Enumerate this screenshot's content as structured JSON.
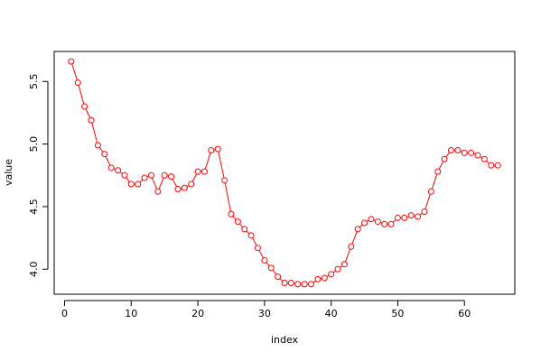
{
  "chart_data": {
    "type": "line",
    "marker": "open-circle",
    "color": "#ff0000",
    "xlabel": "index",
    "ylabel": "value",
    "x": [
      1,
      2,
      3,
      4,
      5,
      6,
      7,
      8,
      9,
      10,
      11,
      12,
      13,
      14,
      15,
      16,
      17,
      18,
      19,
      20,
      21,
      22,
      23,
      24,
      25,
      26,
      27,
      28,
      29,
      30,
      31,
      32,
      33,
      34,
      35,
      36,
      37,
      38,
      39,
      40,
      41,
      42,
      43,
      44,
      45,
      46,
      47,
      48,
      49,
      50,
      51,
      52,
      53,
      54,
      55,
      56,
      57,
      58,
      59,
      60,
      61,
      62,
      63,
      64,
      65
    ],
    "values": [
      5.66,
      5.49,
      5.3,
      5.19,
      4.99,
      4.92,
      4.81,
      4.79,
      4.75,
      4.68,
      4.68,
      4.73,
      4.75,
      4.62,
      4.75,
      4.74,
      4.64,
      4.65,
      4.68,
      4.78,
      4.78,
      4.95,
      4.96,
      4.71,
      4.44,
      4.38,
      4.32,
      4.27,
      4.17,
      4.07,
      4.01,
      3.94,
      3.89,
      3.89,
      3.88,
      3.88,
      3.88,
      3.92,
      3.93,
      3.96,
      4.0,
      4.04,
      4.18,
      4.32,
      4.37,
      4.4,
      4.38,
      4.36,
      4.36,
      4.41,
      4.41,
      4.43,
      4.42,
      4.46,
      4.62,
      4.78,
      4.88,
      4.95,
      4.95,
      4.93,
      4.93,
      4.91,
      4.88,
      4.83,
      4.83
    ],
    "xlim": [
      -1.56,
      67.56
    ],
    "ylim": [
      3.8,
      5.74
    ],
    "xticks": [
      0,
      10,
      20,
      30,
      40,
      50,
      60
    ],
    "yticks": [
      {
        "value": 4.0,
        "label": "4.0"
      },
      {
        "value": 4.5,
        "label": "4.5"
      },
      {
        "value": 5.0,
        "label": "5.0"
      },
      {
        "value": 5.5,
        "label": "5.5"
      }
    ]
  }
}
